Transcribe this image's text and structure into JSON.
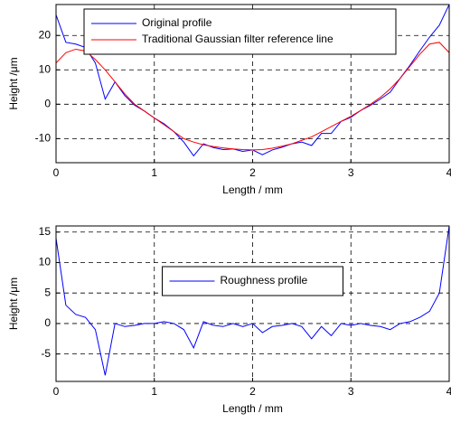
{
  "chart_data": [
    {
      "type": "line",
      "xlabel": "Length / mm",
      "ylabel": "Height /μm",
      "x": [
        0,
        0.1,
        0.2,
        0.3,
        0.4,
        0.5,
        0.6,
        0.7,
        0.8,
        0.9,
        1.0,
        1.1,
        1.2,
        1.3,
        1.4,
        1.5,
        1.6,
        1.7,
        1.8,
        1.9,
        2.0,
        2.1,
        2.2,
        2.3,
        2.4,
        2.5,
        2.6,
        2.7,
        2.8,
        2.9,
        3.0,
        3.1,
        3.2,
        3.3,
        3.4,
        3.5,
        3.6,
        3.7,
        3.8,
        3.9,
        4.0
      ],
      "series": [
        {
          "name": "Original profile",
          "color": "#0000ff",
          "values": [
            26,
            18,
            17.5,
            16.5,
            12,
            1.5,
            6.5,
            2.5,
            -0.3,
            -2,
            -4,
            -5.7,
            -8,
            -11,
            -15,
            -11.5,
            -12.6,
            -13.2,
            -13,
            -13.7,
            -13.3,
            -14.7,
            -13.3,
            -12.5,
            -11.5,
            -11,
            -12,
            -8.5,
            -8.5,
            -5,
            -3.8,
            -1.8,
            -0.3,
            1.5,
            3.5,
            7.5,
            11.3,
            15.5,
            19.5,
            23,
            29
          ]
        },
        {
          "name": "Traditional Gaussian filter reference line",
          "color": "#ff0000",
          "values": [
            12,
            15,
            16,
            15.5,
            13,
            10,
            6.5,
            3,
            0,
            -2,
            -4,
            -6,
            -8,
            -10,
            -11,
            -11.8,
            -12.3,
            -12.7,
            -13,
            -13.2,
            -13.3,
            -13.2,
            -12.8,
            -12.2,
            -11.5,
            -10.5,
            -9.5,
            -8,
            -6.5,
            -5,
            -3.5,
            -1.8,
            0,
            2,
            4.5,
            7.5,
            11,
            14.5,
            17.5,
            18,
            15
          ]
        }
      ],
      "xlim": [
        0,
        4
      ],
      "xticks": [
        0,
        1,
        2,
        3,
        4
      ],
      "ylim": [
        -17,
        29
      ],
      "yticks": [
        -10,
        0,
        10,
        20
      ],
      "grid": true,
      "legend": "upper center"
    },
    {
      "type": "line",
      "xlabel": "Length / mm",
      "ylabel": "Height /μm",
      "x": [
        0,
        0.1,
        0.2,
        0.3,
        0.4,
        0.5,
        0.6,
        0.7,
        0.8,
        0.9,
        1.0,
        1.1,
        1.2,
        1.3,
        1.4,
        1.5,
        1.6,
        1.7,
        1.8,
        1.9,
        2.0,
        2.1,
        2.2,
        2.3,
        2.4,
        2.5,
        2.6,
        2.7,
        2.8,
        2.9,
        3.0,
        3.1,
        3.2,
        3.3,
        3.4,
        3.5,
        3.6,
        3.7,
        3.8,
        3.9,
        4.0
      ],
      "series": [
        {
          "name": "Roughness profile",
          "color": "#0000ff",
          "values": [
            14,
            3,
            1.5,
            1,
            -1,
            -8.5,
            0,
            -0.5,
            -0.3,
            0,
            0,
            0.3,
            0,
            -1,
            -4,
            0.3,
            -0.3,
            -0.5,
            0,
            -0.5,
            0,
            -1.5,
            -0.5,
            -0.3,
            0,
            -0.5,
            -2.5,
            -0.5,
            -2,
            0,
            -0.3,
            0,
            -0.3,
            -0.5,
            -1,
            0,
            0.3,
            1,
            2,
            5,
            16
          ]
        }
      ],
      "xlim": [
        0,
        4
      ],
      "xticks": [
        0,
        1,
        2,
        3,
        4
      ],
      "ylim": [
        -9.5,
        16
      ],
      "yticks": [
        -5,
        0,
        5,
        10,
        15
      ],
      "grid": true,
      "legend": "center"
    }
  ]
}
